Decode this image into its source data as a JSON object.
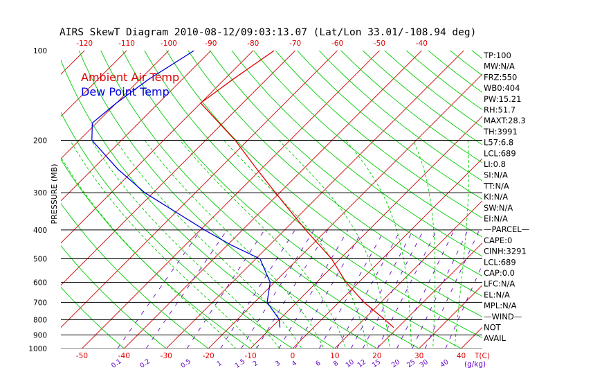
{
  "chart_data": {
    "type": "line",
    "title": "AIRS SkewT Diagram 2010-08-12/09:03:13.07 (Lat/Lon 33.01/-108.94 deg)",
    "ylabel": "PRESSURE (MB)",
    "xlabel_temp": "T(C)",
    "xlabel_mixing": "(g/kg)",
    "y_scale": "log",
    "ylim": [
      1000,
      100
    ],
    "xlim_at_1000mb": [
      -55,
      45
    ],
    "pressure_ticks": [
      "100",
      "200",
      "300",
      "400",
      "500",
      "600",
      "700",
      "800",
      "900",
      "1000"
    ],
    "pressure_tick_values": [
      100,
      200,
      300,
      400,
      500,
      600,
      700,
      800,
      900,
      1000
    ],
    "pressure_gridlines": [
      200,
      300,
      400,
      500,
      600,
      700,
      800,
      900,
      1000
    ],
    "top_temp_ticks": [
      "-120",
      "-110",
      "-100",
      "-90",
      "-80",
      "-70",
      "-60",
      "-50",
      "-40"
    ],
    "top_temp_values": [
      -120,
      -110,
      -100,
      -90,
      -80,
      -70,
      -60,
      -50,
      -40
    ],
    "bottom_temp_ticks": [
      "-50",
      "-40",
      "-30",
      "-20",
      "-10",
      "0",
      "10",
      "20",
      "30",
      "40"
    ],
    "bottom_temp_values": [
      -50,
      -40,
      -30,
      -20,
      -10,
      0,
      10,
      20,
      30,
      40
    ],
    "mixing_ratio_ticks": [
      "0.1",
      "0.2",
      "0.5",
      "1",
      "1.5",
      "2",
      "3",
      "4",
      "6",
      "8",
      "10",
      "12",
      "15",
      "20",
      "25",
      "30",
      "40"
    ],
    "mixing_ratio_values": [
      0.1,
      0.2,
      0.5,
      1,
      1.5,
      2,
      3,
      4,
      6,
      8,
      10,
      12,
      15,
      20,
      25,
      30,
      40
    ],
    "isotherm_step": 10,
    "series": [
      {
        "name": "Ambient Air Temp",
        "color": "#dd0000",
        "points": [
          {
            "p": 100,
            "t": -75
          },
          {
            "p": 125,
            "t": -78
          },
          {
            "p": 150,
            "t": -80
          },
          {
            "p": 200,
            "t": -63
          },
          {
            "p": 250,
            "t": -51
          },
          {
            "p": 300,
            "t": -41
          },
          {
            "p": 400,
            "t": -25
          },
          {
            "p": 500,
            "t": -12
          },
          {
            "p": 600,
            "t": -3
          },
          {
            "p": 700,
            "t": 6
          },
          {
            "p": 800,
            "t": 15
          },
          {
            "p": 850,
            "t": 19
          }
        ]
      },
      {
        "name": "Dew Point Temp",
        "color": "#0000dd",
        "points": [
          {
            "p": 100,
            "t": -94
          },
          {
            "p": 125,
            "t": -98
          },
          {
            "p": 150,
            "t": -100
          },
          {
            "p": 175,
            "t": -101
          },
          {
            "p": 200,
            "t": -97
          },
          {
            "p": 250,
            "t": -84
          },
          {
            "p": 300,
            "t": -72
          },
          {
            "p": 400,
            "t": -49
          },
          {
            "p": 450,
            "t": -39
          },
          {
            "p": 500,
            "t": -29
          },
          {
            "p": 600,
            "t": -21
          },
          {
            "p": 700,
            "t": -17
          },
          {
            "p": 800,
            "t": -10
          },
          {
            "p": 850,
            "t": -8
          }
        ]
      }
    ],
    "legend": [
      {
        "label": "Ambient Air Temp",
        "color": "#dd0000"
      },
      {
        "label": "Dew Point Temp",
        "color": "#0000dd"
      }
    ],
    "legend_placement": "top-left"
  },
  "indices": [
    "TP:100",
    "MW:N/A",
    "FRZ:550",
    "WB0:404",
    "PW:15.21",
    "RH:51.7",
    "MAXT:28.3",
    "TH:3991",
    "L57:6.8",
    "LCL:689",
    "LI:0.8",
    "SI:N/A",
    "TT:N/A",
    "KI:N/A",
    "SW:N/A",
    "EI:N/A",
    "—PARCEL—",
    "CAPE:0",
    "CINH:3291",
    "LCL:689",
    "CAP:0.0",
    "LFC:N/A",
    "EL:N/A",
    "MPL:N/A",
    "—WIND—",
    "NOT",
    "AVAIL"
  ],
  "colors": {
    "isotherm": "#cc0000",
    "dry_adiabat": "#00cc00",
    "moist_adiabat": "#00cc00",
    "mixing_ratio": "#6600cc",
    "gridline": "#000000",
    "temp_ticks": "#dd0000",
    "mixing_ticks": "#6600cc",
    "text": "#000000"
  }
}
